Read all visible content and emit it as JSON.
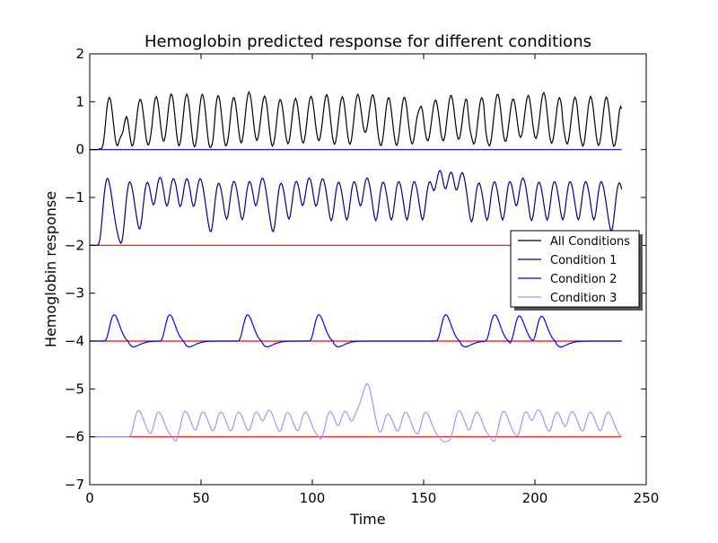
{
  "chart_data": {
    "type": "line",
    "title": "Hemoglobin predicted response for different conditions",
    "xlabel": "Time",
    "ylabel": "Hemoglobin response",
    "xlim": [
      0,
      250
    ],
    "ylim": [
      -7,
      2
    ],
    "xticks": [
      0,
      50,
      100,
      150,
      200,
      250
    ],
    "yticks": [
      -7,
      -6,
      -5,
      -4,
      -3,
      -2,
      -1,
      0,
      1,
      2
    ],
    "tick_labels": {
      "x": [
        "0",
        "50",
        "100",
        "150",
        "200",
        "250"
      ],
      "y": [
        "−7",
        "−6",
        "−5",
        "−4",
        "−3",
        "−2",
        "−1",
        "0",
        "1",
        "2"
      ]
    },
    "grid": false,
    "legend_position": "right",
    "time_range": [
      0,
      239
    ],
    "baselines": [
      {
        "series": "All Conditions",
        "value": 0,
        "color": "#0000ff"
      },
      {
        "series": "Condition 1",
        "value": -2,
        "color": "#ff0000"
      },
      {
        "series": "Condition 2",
        "value": -4,
        "color": "#ff0000"
      },
      {
        "series": "Condition 3",
        "value": -6,
        "color": "#ff0000"
      }
    ],
    "series": [
      {
        "name": "All Conditions",
        "color": "#000000",
        "offset": 0,
        "peak": 1.35,
        "trough": 0.55
      },
      {
        "name": "Condition 1",
        "color": "#00008b",
        "offset": -2,
        "peak": 1.4,
        "undershoot": -0.3,
        "onsets": [
          3,
          13,
          21,
          27,
          33,
          39,
          45,
          53,
          60,
          67,
          73,
          81,
          88,
          94,
          100,
          107,
          114,
          120,
          127,
          134,
          141,
          148,
          153,
          158,
          163,
          170,
          177,
          184,
          190,
          197,
          204,
          211,
          218,
          225,
          233
        ]
      },
      {
        "name": "Condition 2",
        "color": "#0000ff",
        "offset": -4,
        "peak": 0.55,
        "undershoot": -0.12,
        "onsets": [
          6,
          31,
          66,
          98,
          155,
          177,
          188,
          198
        ]
      },
      {
        "name": "Condition 3",
        "color": "#9999ff",
        "offset": -6,
        "peak": 0.55,
        "undershoot": -0.1,
        "onsets": [
          17,
          26,
          38,
          46,
          54,
          62,
          70,
          76,
          84,
          92,
          103,
          110,
          116,
          119,
          121,
          129,
          137,
          146,
          161,
          169,
          181,
          191,
          197,
          205,
          212,
          220,
          228
        ]
      }
    ]
  },
  "legend": {
    "items": [
      {
        "label": "All Conditions",
        "color": "#000000"
      },
      {
        "label": "Condition 1",
        "color": "#00008b"
      },
      {
        "label": "Condition 2",
        "color": "#0000ff"
      },
      {
        "label": "Condition 3",
        "color": "#9999ff"
      }
    ]
  }
}
